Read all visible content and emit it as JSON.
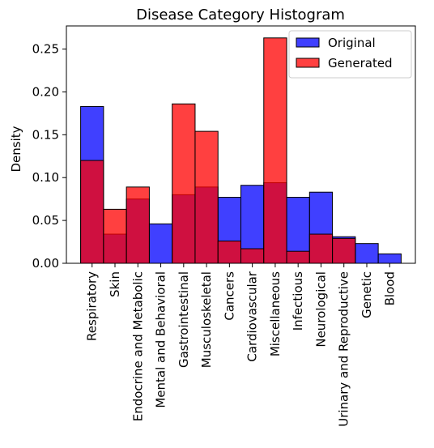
{
  "chart_data": {
    "type": "bar",
    "title": "Disease Category Histogram",
    "xlabel": "",
    "ylabel": "Density",
    "ylim": [
      0,
      0.277
    ],
    "yticks": [
      0.0,
      0.05,
      0.1,
      0.15,
      0.2,
      0.25
    ],
    "ytick_labels": [
      "0.00",
      "0.05",
      "0.10",
      "0.15",
      "0.20",
      "0.25"
    ],
    "grid": false,
    "legend_position": "top-right",
    "categories": [
      "Respiratory",
      "Skin",
      "Endocrine and Metabolic",
      "Mental and Behavioral",
      "Gastrointestinal",
      "Musculoskeletal",
      "Cancers",
      "Cardiovascular",
      "Miscellaneous",
      "Infectious",
      "Neurological",
      "Urinary and Reproductive",
      "Genetic",
      "Blood"
    ],
    "series": [
      {
        "name": "Original",
        "color": "#0000ff",
        "values": [
          0.183,
          0.034,
          0.075,
          0.046,
          0.08,
          0.089,
          0.077,
          0.091,
          0.094,
          0.077,
          0.083,
          0.031,
          0.023,
          0.011
        ]
      },
      {
        "name": "Generated",
        "color": "#ff0000",
        "values": [
          0.12,
          0.063,
          0.089,
          0.0,
          0.186,
          0.154,
          0.026,
          0.017,
          0.263,
          0.014,
          0.034,
          0.029,
          0.0,
          0.0
        ]
      }
    ]
  }
}
